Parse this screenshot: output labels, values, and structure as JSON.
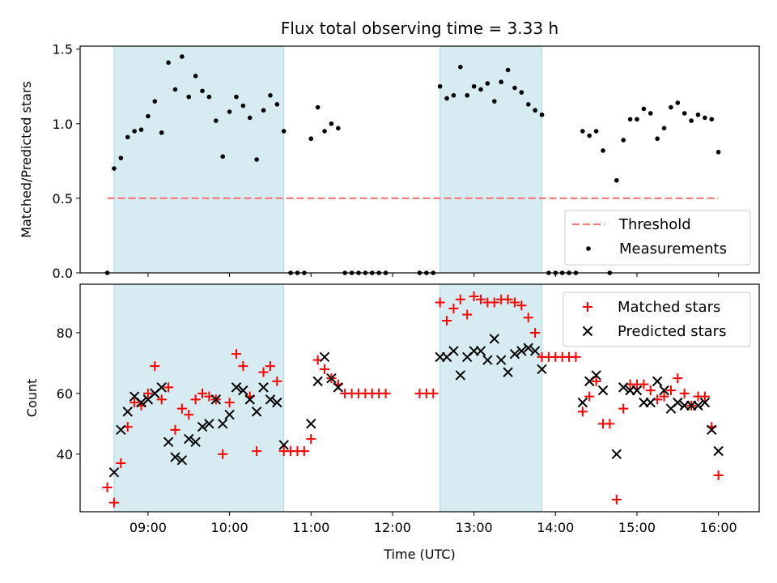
{
  "chart_data": [
    {
      "type": "scatter",
      "title": "Flux total observing time = 3.33 h",
      "ylabel": "Matched/Predicted stars",
      "ylim": [
        0,
        1.52
      ],
      "yticks": [
        "0.0",
        "0.5",
        "1.0",
        "1.5"
      ],
      "shaded_intervals": [
        [
          "08:35",
          "10:40"
        ],
        [
          "12:35",
          "13:50"
        ]
      ],
      "threshold": {
        "name": "Threshold",
        "value": 0.5,
        "x_range": [
          "08:30",
          "16:00"
        ],
        "color": "#f08080"
      },
      "legend": {
        "position": "bottom-right",
        "entries": [
          "Threshold",
          "Measurements"
        ]
      },
      "series": [
        {
          "name": "Measurements",
          "color": "#000000",
          "marker": "dot",
          "points": [
            [
              "08:30",
              0.0
            ],
            [
              "08:35",
              0.7
            ],
            [
              "08:40",
              0.77
            ],
            [
              "08:45",
              0.91
            ],
            [
              "08:50",
              0.95
            ],
            [
              "08:55",
              0.96
            ],
            [
              "09:00",
              1.05
            ],
            [
              "09:05",
              1.15
            ],
            [
              "09:10",
              0.94
            ],
            [
              "09:15",
              1.41
            ],
            [
              "09:20",
              1.23
            ],
            [
              "09:25",
              1.45
            ],
            [
              "09:30",
              1.18
            ],
            [
              "09:35",
              1.32
            ],
            [
              "09:40",
              1.22
            ],
            [
              "09:45",
              1.18
            ],
            [
              "09:50",
              1.02
            ],
            [
              "09:55",
              0.78
            ],
            [
              "10:00",
              1.08
            ],
            [
              "10:05",
              1.18
            ],
            [
              "10:10",
              1.12
            ],
            [
              "10:15",
              1.04
            ],
            [
              "10:20",
              0.76
            ],
            [
              "10:25",
              1.09
            ],
            [
              "10:30",
              1.19
            ],
            [
              "10:35",
              1.13
            ],
            [
              "10:40",
              0.95
            ],
            [
              "10:45",
              0.0
            ],
            [
              "10:50",
              0.0
            ],
            [
              "10:55",
              0.0
            ],
            [
              "11:00",
              0.9
            ],
            [
              "11:05",
              1.11
            ],
            [
              "11:10",
              0.95
            ],
            [
              "11:15",
              1.0
            ],
            [
              "11:20",
              0.97
            ],
            [
              "11:25",
              0.0
            ],
            [
              "11:30",
              0.0
            ],
            [
              "11:35",
              0.0
            ],
            [
              "11:40",
              0.0
            ],
            [
              "11:45",
              0.0
            ],
            [
              "11:50",
              0.0
            ],
            [
              "11:55",
              0.0
            ],
            [
              "12:20",
              0.0
            ],
            [
              "12:25",
              0.0
            ],
            [
              "12:30",
              0.0
            ],
            [
              "12:35",
              1.25
            ],
            [
              "12:40",
              1.17
            ],
            [
              "12:45",
              1.19
            ],
            [
              "12:50",
              1.38
            ],
            [
              "12:55",
              1.19
            ],
            [
              "13:00",
              1.25
            ],
            [
              "13:05",
              1.23
            ],
            [
              "13:10",
              1.27
            ],
            [
              "13:15",
              1.15
            ],
            [
              "13:20",
              1.28
            ],
            [
              "13:25",
              1.36
            ],
            [
              "13:30",
              1.24
            ],
            [
              "13:35",
              1.21
            ],
            [
              "13:40",
              1.13
            ],
            [
              "13:45",
              1.09
            ],
            [
              "13:50",
              1.06
            ],
            [
              "13:55",
              0.0
            ],
            [
              "14:00",
              0.0
            ],
            [
              "14:05",
              0.0
            ],
            [
              "14:10",
              0.0
            ],
            [
              "14:15",
              0.0
            ],
            [
              "14:20",
              0.95
            ],
            [
              "14:25",
              0.92
            ],
            [
              "14:30",
              0.95
            ],
            [
              "14:35",
              0.82
            ],
            [
              "14:40",
              0.0
            ],
            [
              "14:45",
              0.62
            ],
            [
              "14:50",
              0.89
            ],
            [
              "14:55",
              1.03
            ],
            [
              "15:00",
              1.03
            ],
            [
              "15:05",
              1.1
            ],
            [
              "15:10",
              1.07
            ],
            [
              "15:15",
              0.9
            ],
            [
              "15:20",
              0.97
            ],
            [
              "15:25",
              1.11
            ],
            [
              "15:30",
              1.14
            ],
            [
              "15:35",
              1.07
            ],
            [
              "15:40",
              1.02
            ],
            [
              "15:45",
              1.06
            ],
            [
              "15:50",
              1.04
            ],
            [
              "15:55",
              1.03
            ],
            [
              "16:00",
              0.81
            ]
          ]
        }
      ]
    },
    {
      "type": "scatter",
      "xlabel": "Time (UTC)",
      "ylabel": "Count",
      "xlim": [
        "08:10",
        "16:30"
      ],
      "ylim": [
        21,
        96
      ],
      "xticks": [
        "09:00",
        "10:00",
        "11:00",
        "12:00",
        "13:00",
        "14:00",
        "15:00",
        "16:00"
      ],
      "yticks": [
        "40",
        "60",
        "80"
      ],
      "shaded_intervals": [
        [
          "08:35",
          "10:40"
        ],
        [
          "12:35",
          "13:50"
        ]
      ],
      "legend": {
        "position": "top-right",
        "entries": [
          "Matched stars",
          "Predicted stars"
        ]
      },
      "series": [
        {
          "name": "Matched stars",
          "color": "#ff0000",
          "marker": "plus",
          "points": [
            [
              "08:30",
              29
            ],
            [
              "08:35",
              24
            ],
            [
              "08:40",
              37
            ],
            [
              "08:45",
              49
            ],
            [
              "08:50",
              57
            ],
            [
              "08:55",
              56
            ],
            [
              "09:00",
              60
            ],
            [
              "09:05",
              69
            ],
            [
              "09:10",
              58
            ],
            [
              "09:15",
              62
            ],
            [
              "09:20",
              48
            ],
            [
              "09:25",
              55
            ],
            [
              "09:30",
              53
            ],
            [
              "09:35",
              58
            ],
            [
              "09:40",
              60
            ],
            [
              "09:45",
              59
            ],
            [
              "09:50",
              58
            ],
            [
              "09:55",
              40
            ],
            [
              "10:00",
              57
            ],
            [
              "10:05",
              73
            ],
            [
              "10:10",
              69
            ],
            [
              "10:15",
              59
            ],
            [
              "10:20",
              41
            ],
            [
              "10:25",
              67
            ],
            [
              "10:30",
              69
            ],
            [
              "10:35",
              64
            ],
            [
              "10:40",
              41
            ],
            [
              "10:45",
              41
            ],
            [
              "10:50",
              41
            ],
            [
              "10:55",
              41
            ],
            [
              "11:00",
              45
            ],
            [
              "11:05",
              71
            ],
            [
              "11:10",
              68
            ],
            [
              "11:15",
              65
            ],
            [
              "11:20",
              63
            ],
            [
              "11:25",
              60
            ],
            [
              "11:30",
              60
            ],
            [
              "11:35",
              60
            ],
            [
              "11:40",
              60
            ],
            [
              "11:45",
              60
            ],
            [
              "11:50",
              60
            ],
            [
              "11:55",
              60
            ],
            [
              "12:20",
              60
            ],
            [
              "12:25",
              60
            ],
            [
              "12:30",
              60
            ],
            [
              "12:35",
              90
            ],
            [
              "12:40",
              84
            ],
            [
              "12:45",
              88
            ],
            [
              "12:50",
              91
            ],
            [
              "12:55",
              86
            ],
            [
              "13:00",
              92
            ],
            [
              "13:05",
              91
            ],
            [
              "13:10",
              90
            ],
            [
              "13:15",
              90
            ],
            [
              "13:20",
              91
            ],
            [
              "13:25",
              91
            ],
            [
              "13:30",
              90
            ],
            [
              "13:35",
              89
            ],
            [
              "13:40",
              85
            ],
            [
              "13:45",
              80
            ],
            [
              "13:50",
              72
            ],
            [
              "13:55",
              72
            ],
            [
              "14:00",
              72
            ],
            [
              "14:05",
              72
            ],
            [
              "14:10",
              72
            ],
            [
              "14:15",
              72
            ],
            [
              "14:20",
              54
            ],
            [
              "14:25",
              59
            ],
            [
              "14:30",
              64
            ],
            [
              "14:35",
              50
            ],
            [
              "14:40",
              50
            ],
            [
              "14:45",
              25
            ],
            [
              "14:50",
              55
            ],
            [
              "14:55",
              63
            ],
            [
              "15:00",
              63
            ],
            [
              "15:05",
              63
            ],
            [
              "15:10",
              61
            ],
            [
              "15:15",
              58
            ],
            [
              "15:20",
              59
            ],
            [
              "15:25",
              61
            ],
            [
              "15:30",
              65
            ],
            [
              "15:35",
              60
            ],
            [
              "15:40",
              56
            ],
            [
              "15:45",
              59
            ],
            [
              "15:50",
              59
            ],
            [
              "15:55",
              49
            ],
            [
              "16:00",
              33
            ]
          ]
        },
        {
          "name": "Predicted stars",
          "color": "#000000",
          "marker": "x",
          "points": [
            [
              "08:35",
              34
            ],
            [
              "08:40",
              48
            ],
            [
              "08:45",
              54
            ],
            [
              "08:50",
              59
            ],
            [
              "08:55",
              57
            ],
            [
              "09:00",
              58
            ],
            [
              "09:05",
              60
            ],
            [
              "09:10",
              62
            ],
            [
              "09:15",
              44
            ],
            [
              "09:20",
              39
            ],
            [
              "09:25",
              38
            ],
            [
              "09:30",
              45
            ],
            [
              "09:35",
              44
            ],
            [
              "09:40",
              49
            ],
            [
              "09:45",
              50
            ],
            [
              "09:50",
              58
            ],
            [
              "09:55",
              50
            ],
            [
              "10:00",
              53
            ],
            [
              "10:05",
              62
            ],
            [
              "10:10",
              61
            ],
            [
              "10:15",
              58
            ],
            [
              "10:20",
              54
            ],
            [
              "10:25",
              62
            ],
            [
              "10:30",
              58
            ],
            [
              "10:35",
              57
            ],
            [
              "10:40",
              43
            ],
            [
              "11:00",
              50
            ],
            [
              "11:05",
              64
            ],
            [
              "11:10",
              72
            ],
            [
              "11:15",
              65
            ],
            [
              "11:20",
              62
            ],
            [
              "12:35",
              72
            ],
            [
              "12:40",
              72
            ],
            [
              "12:45",
              74
            ],
            [
              "12:50",
              66
            ],
            [
              "12:55",
              72
            ],
            [
              "13:00",
              74
            ],
            [
              "13:05",
              74
            ],
            [
              "13:10",
              71
            ],
            [
              "13:15",
              78
            ],
            [
              "13:20",
              71
            ],
            [
              "13:25",
              67
            ],
            [
              "13:30",
              73
            ],
            [
              "13:35",
              74
            ],
            [
              "13:40",
              75
            ],
            [
              "13:45",
              74
            ],
            [
              "13:50",
              68
            ],
            [
              "14:20",
              57
            ],
            [
              "14:25",
              64
            ],
            [
              "14:30",
              66
            ],
            [
              "14:35",
              61
            ],
            [
              "14:45",
              40
            ],
            [
              "14:50",
              62
            ],
            [
              "14:55",
              61
            ],
            [
              "15:00",
              61
            ],
            [
              "15:05",
              57
            ],
            [
              "15:10",
              57
            ],
            [
              "15:15",
              64
            ],
            [
              "15:20",
              61
            ],
            [
              "15:25",
              55
            ],
            [
              "15:30",
              57
            ],
            [
              "15:35",
              56
            ],
            [
              "15:40",
              56
            ],
            [
              "15:45",
              56
            ],
            [
              "15:50",
              57
            ],
            [
              "15:55",
              48
            ],
            [
              "16:00",
              41
            ]
          ]
        }
      ]
    }
  ]
}
